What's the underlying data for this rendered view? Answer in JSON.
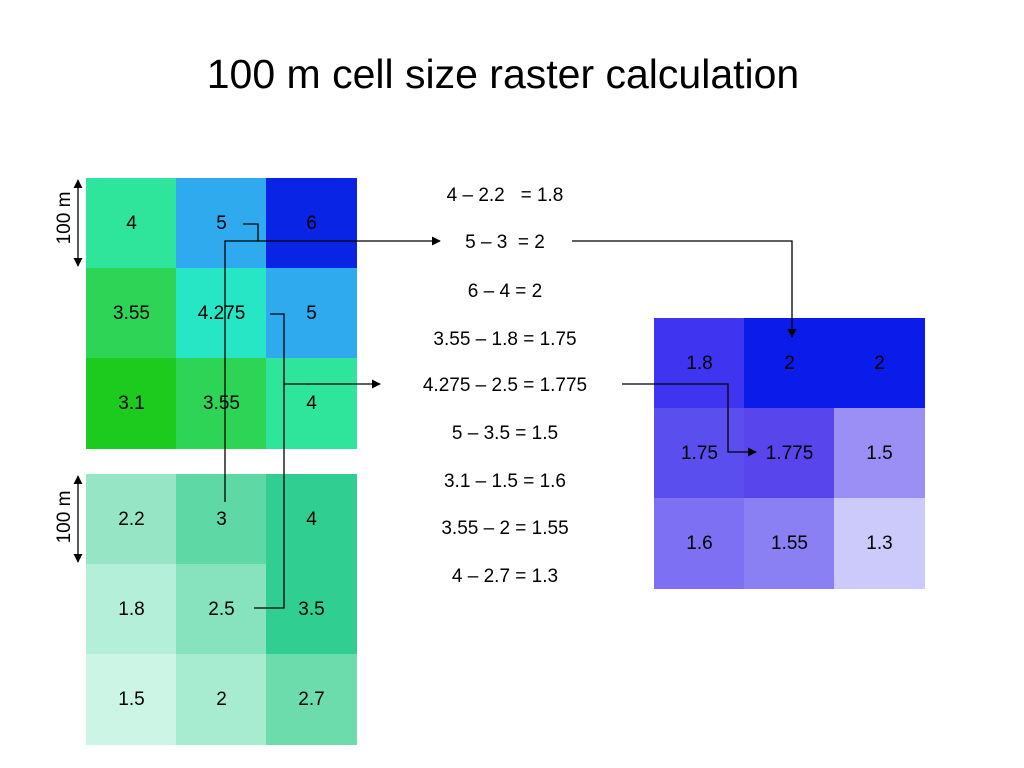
{
  "title": "100 m cell size raster calculation",
  "scale_label": "100 m",
  "top_grid": {
    "cells": [
      {
        "value": "4",
        "color": "#2fe49b"
      },
      {
        "value": "5",
        "color": "#30aaee"
      },
      {
        "value": "6",
        "color": "#0a24e6"
      },
      {
        "value": "3.55",
        "color": "#2dd456"
      },
      {
        "value": "4.275",
        "color": "#27e6c6"
      },
      {
        "value": "5",
        "color": "#30aaee"
      },
      {
        "value": "3.1",
        "color": "#1dcb1e"
      },
      {
        "value": "3.55",
        "color": "#2dd456"
      },
      {
        "value": "4",
        "color": "#2fe49b"
      }
    ]
  },
  "bottom_grid": {
    "cells": [
      {
        "value": "2.2",
        "color": "#96e5c4"
      },
      {
        "value": "3",
        "color": "#5ed8a5"
      },
      {
        "value": "4",
        "color": "#30cf91"
      },
      {
        "value": "1.8",
        "color": "#b4efda"
      },
      {
        "value": "2.5",
        "color": "#86e3bd"
      },
      {
        "value": "3.5",
        "color": "#30cf91"
      },
      {
        "value": "1.5",
        "color": "#ccf5e6"
      },
      {
        "value": "2",
        "color": "#a7ecd1"
      },
      {
        "value": "2.7",
        "color": "#6ddcad"
      }
    ]
  },
  "result_grid": {
    "cells": [
      {
        "value": "1.8",
        "color": "#3f34f0"
      },
      {
        "value": "2",
        "color": "#0a1bea"
      },
      {
        "value": "2",
        "color": "#0a1bea"
      },
      {
        "value": "1.75",
        "color": "#5b4eee"
      },
      {
        "value": "1.775",
        "color": "#5945ec"
      },
      {
        "value": "1.5",
        "color": "#9b8ff6"
      },
      {
        "value": "1.6",
        "color": "#7d70f2"
      },
      {
        "value": "1.55",
        "color": "#8a7ff3"
      },
      {
        "value": "1.3",
        "color": "#ccc9fb"
      }
    ]
  },
  "equations": [
    "4 – 2.2   = 1.8",
    "5 – 3  = 2",
    "6 – 4 = 2",
    "3.55 – 1.8 = 1.75",
    "4.275 – 2.5 = 1.775",
    "5 – 3.5 = 1.5",
    "3.1 – 1.5 = 1.6",
    "3.55 – 2 = 1.55",
    "4 – 2.7 = 1.3"
  ]
}
